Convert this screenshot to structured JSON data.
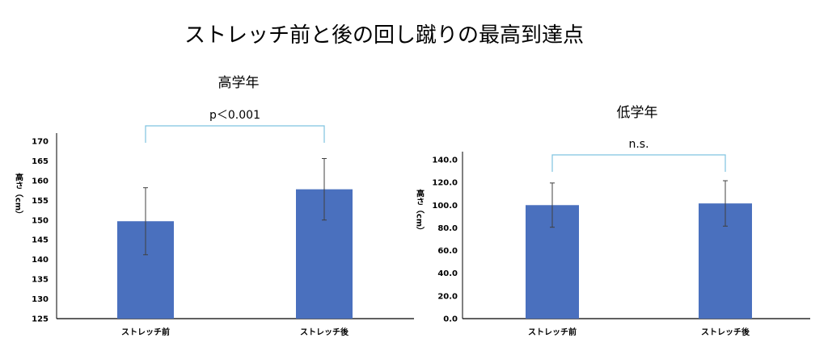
{
  "title": "ストレッチ前と後の回し蹴りの最高到達点",
  "colors": {
    "bar": "#4a70be",
    "error": "#404040",
    "bracket": "#7fc3e0",
    "axis": "#000000"
  },
  "chart_data": [
    {
      "type": "bar",
      "title": "高学年",
      "ylabel": "高さ（cm）",
      "categories": [
        "ストレッチ前",
        "ストレッチ後"
      ],
      "values": [
        149.7,
        157.8
      ],
      "errors": [
        8.5,
        7.8
      ],
      "ylim": [
        125,
        170
      ],
      "yticks": [
        125,
        130,
        135,
        140,
        145,
        150,
        155,
        160,
        165,
        170
      ],
      "ytick_labels": [
        "125",
        "130",
        "135",
        "140",
        "145",
        "150",
        "155",
        "160",
        "165",
        "170"
      ],
      "significance": "p＜0.001"
    },
    {
      "type": "bar",
      "title": "低学年",
      "ylabel": "高さ（cm）",
      "categories": [
        "ストレッチ前",
        "ストレッチ後"
      ],
      "values": [
        100.0,
        101.5
      ],
      "errors": [
        19.5,
        20.0
      ],
      "ylim": [
        0,
        140
      ],
      "yticks": [
        0,
        20,
        40,
        60,
        80,
        100,
        120,
        140
      ],
      "ytick_labels": [
        "0.0",
        "20.0",
        "40.0",
        "60.0",
        "80.0",
        "100.0",
        "120.0",
        "140.0"
      ],
      "significance": "n.s."
    }
  ]
}
